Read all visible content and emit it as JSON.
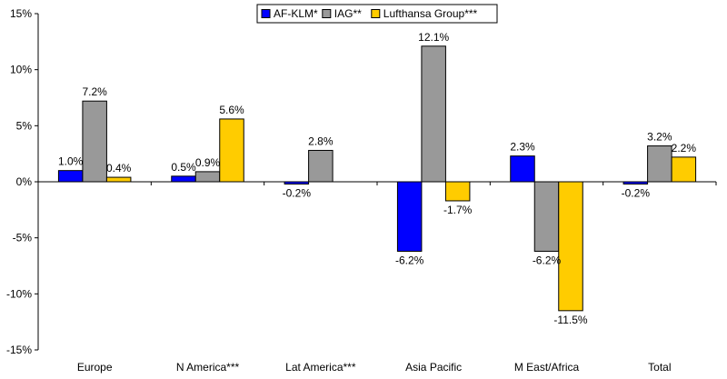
{
  "chart_data": {
    "type": "bar",
    "title": "",
    "xlabel": "",
    "ylabel": "",
    "categories": [
      "Europe",
      "N America***",
      "Lat America***",
      "Asia Pacific",
      "M East/Africa",
      "Total"
    ],
    "ylim": [
      -15,
      15
    ],
    "yticks": [
      15,
      10,
      5,
      0,
      -5,
      -10,
      -15
    ],
    "ytick_labels": [
      "15%",
      "10%",
      "5%",
      "0%",
      "-5%",
      "-10%",
      "-15%"
    ],
    "grid": false,
    "legend_position": "top-center",
    "series": [
      {
        "name": "AF-KLM*",
        "color": "#0000ff",
        "values": [
          1.0,
          0.5,
          -0.2,
          -6.2,
          2.3,
          -0.2
        ],
        "labels": [
          "1.0%",
          "0.5%",
          "-0.2%",
          "-6.2%",
          "2.3%",
          "-0.2%"
        ]
      },
      {
        "name": "IAG**",
        "color": "#999999",
        "values": [
          7.2,
          0.9,
          2.8,
          12.1,
          -6.2,
          3.2
        ],
        "labels": [
          "7.2%",
          "0.9%",
          "2.8%",
          "12.1%",
          "-6.2%",
          "3.2%"
        ]
      },
      {
        "name": "Lufthansa Group***",
        "color": "#ffcc00",
        "values": [
          0.4,
          5.6,
          null,
          -1.7,
          -11.5,
          2.2
        ],
        "labels": [
          "0.4%",
          "5.6%",
          "",
          "-1.7%",
          "-11.5%",
          "2.2%"
        ]
      }
    ]
  }
}
